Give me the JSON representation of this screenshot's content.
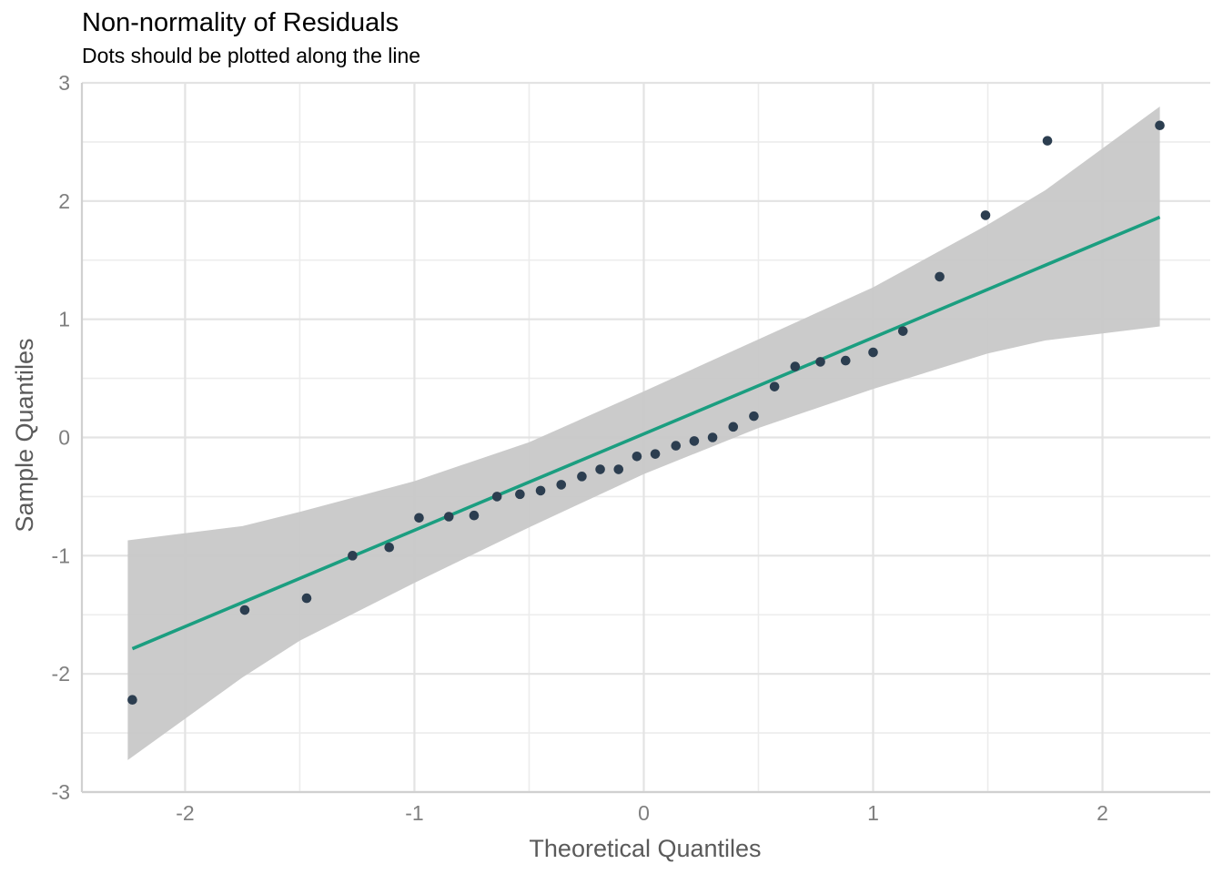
{
  "chart_data": {
    "type": "scatter",
    "title": "Non-normality of Residuals",
    "subtitle": "Dots should be plotted along the line",
    "xlabel": "Theoretical Quantiles",
    "ylabel": "Sample Quantiles",
    "xlim": [
      -2.45,
      2.47
    ],
    "ylim": [
      -3.0,
      3.0
    ],
    "x_ticks": [
      -2,
      -1,
      0,
      1,
      2
    ],
    "x_tick_labels": [
      "-2",
      "-1",
      "0",
      "1",
      "2"
    ],
    "y_ticks": [
      -3,
      -2,
      -1,
      0,
      1,
      2,
      3
    ],
    "y_tick_labels": [
      "-3",
      "-2",
      "-1",
      "0",
      "1",
      "2",
      "3"
    ],
    "grid": true,
    "points": [
      {
        "x": -2.23,
        "y": -2.22
      },
      {
        "x": -1.74,
        "y": -1.46
      },
      {
        "x": -1.47,
        "y": -1.36
      },
      {
        "x": -1.27,
        "y": -1.0
      },
      {
        "x": -1.11,
        "y": -0.93
      },
      {
        "x": -0.98,
        "y": -0.68
      },
      {
        "x": -0.85,
        "y": -0.67
      },
      {
        "x": -0.74,
        "y": -0.66
      },
      {
        "x": -0.64,
        "y": -0.5
      },
      {
        "x": -0.54,
        "y": -0.48
      },
      {
        "x": -0.45,
        "y": -0.45
      },
      {
        "x": -0.36,
        "y": -0.4
      },
      {
        "x": -0.27,
        "y": -0.33
      },
      {
        "x": -0.19,
        "y": -0.27
      },
      {
        "x": -0.11,
        "y": -0.27
      },
      {
        "x": -0.03,
        "y": -0.16
      },
      {
        "x": 0.05,
        "y": -0.14
      },
      {
        "x": 0.14,
        "y": -0.07
      },
      {
        "x": 0.22,
        "y": -0.03
      },
      {
        "x": 0.3,
        "y": 0.0
      },
      {
        "x": 0.39,
        "y": 0.09
      },
      {
        "x": 0.48,
        "y": 0.18
      },
      {
        "x": 0.57,
        "y": 0.43
      },
      {
        "x": 0.66,
        "y": 0.6
      },
      {
        "x": 0.77,
        "y": 0.64
      },
      {
        "x": 0.88,
        "y": 0.65
      },
      {
        "x": 1.0,
        "y": 0.72
      },
      {
        "x": 1.13,
        "y": 0.9
      },
      {
        "x": 1.29,
        "y": 1.36
      },
      {
        "x": 1.49,
        "y": 1.88
      },
      {
        "x": 1.76,
        "y": 2.51
      },
      {
        "x": 2.25,
        "y": 2.64
      }
    ],
    "reference_line": {
      "intercept": 0.03,
      "slope": 0.815
    },
    "confidence_band": [
      {
        "x": -2.25,
        "lower": -2.73,
        "upper": -0.87
      },
      {
        "x": -1.75,
        "lower": -2.03,
        "upper": -0.75
      },
      {
        "x": -1.5,
        "lower": -1.72,
        "upper": -0.63
      },
      {
        "x": -1.0,
        "lower": -1.23,
        "upper": -0.37
      },
      {
        "x": -0.5,
        "lower": -0.76,
        "upper": -0.04
      },
      {
        "x": 0.0,
        "lower": -0.31,
        "upper": 0.39
      },
      {
        "x": 0.5,
        "lower": 0.08,
        "upper": 0.83
      },
      {
        "x": 1.0,
        "lower": 0.41,
        "upper": 1.27
      },
      {
        "x": 1.5,
        "lower": 0.71,
        "upper": 1.8
      },
      {
        "x": 1.75,
        "lower": 0.82,
        "upper": 2.09
      },
      {
        "x": 2.25,
        "lower": 0.94,
        "upper": 2.8
      }
    ],
    "colors": {
      "points": "#2c3e50",
      "line": "#1b9e80",
      "band": "#c8c8c8"
    }
  }
}
